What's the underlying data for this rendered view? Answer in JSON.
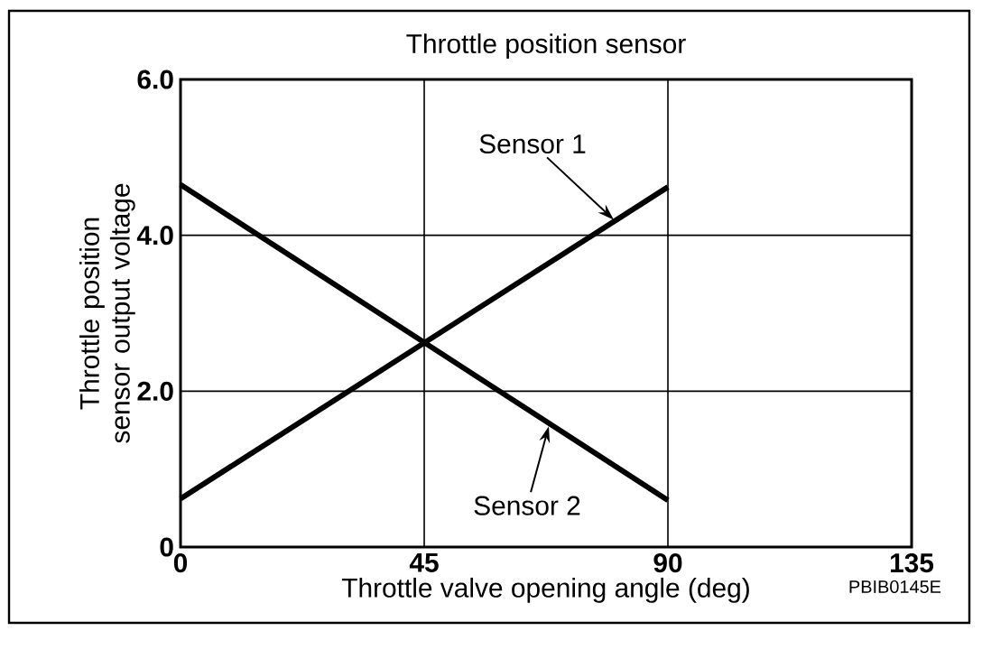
{
  "chart_data": {
    "type": "line",
    "title": "Throttle position sensor",
    "xlabel": "Throttle valve opening angle (deg)",
    "ylabel": "Throttle position sensor output voltage",
    "x": [
      0,
      90
    ],
    "series": [
      {
        "color": "#000000",
        "values": [
          0.62,
          4.62
        ]
      },
      {
        "color": "#000000",
        "values": [
          4.65,
          0.6
        ]
      }
    ],
    "xlim": [
      0,
      135
    ],
    "xticks": [
      0,
      45,
      90,
      135
    ],
    "ylim": [
      0,
      6
    ],
    "yticks": [
      0,
      {
        "value": 2,
        "label": "2.0"
      },
      {
        "value": 4,
        "label": "4.0"
      },
      {
        "value": 6,
        "label": "6.0"
      }
    ],
    "grid": true,
    "marker": "none",
    "line_style": "solid",
    "annotations": [
      {
        "text": "Sensor 1",
        "x": 80,
        "y": 4.2
      },
      {
        "text": "Sensor 2",
        "x": 68,
        "y": 1.55
      },
      "PBIB0145E"
    ]
  }
}
